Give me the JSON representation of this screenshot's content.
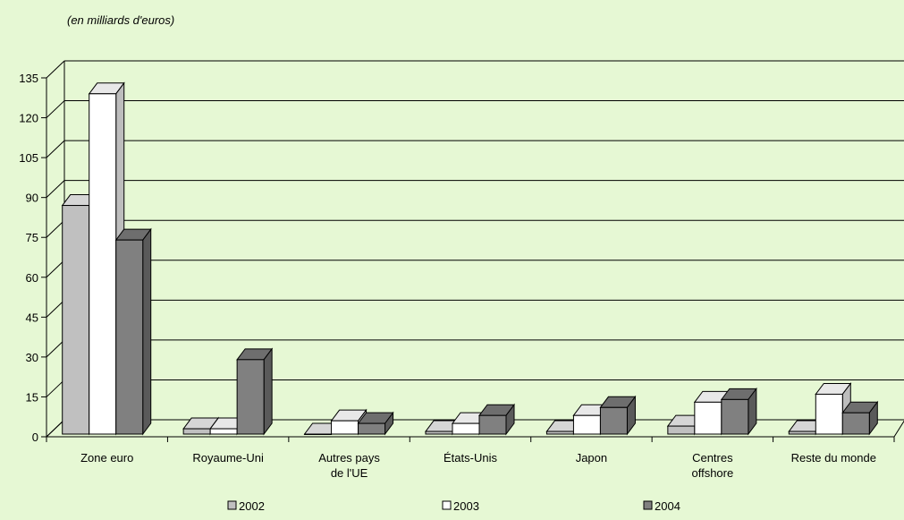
{
  "chart_data": {
    "type": "bar",
    "subtitle": "(en milliards d'euros)",
    "categories": [
      [
        "Zone euro"
      ],
      [
        "Royaume-Uni"
      ],
      [
        "Autres pays",
        "de l'UE"
      ],
      [
        "États-Unis"
      ],
      [
        "Japon"
      ],
      [
        "Centres",
        "offshore"
      ],
      [
        "Reste du monde"
      ]
    ],
    "series": [
      {
        "name": "2002",
        "color": "#c0c0c0",
        "top": "#d6d6d6",
        "side": "#8c8c8c",
        "values": [
          86,
          2,
          0,
          1,
          1,
          3,
          1
        ]
      },
      {
        "name": "2003",
        "color": "#ffffff",
        "top": "#e8e8e8",
        "side": "#bdbdbd",
        "values": [
          128,
          2,
          5,
          4,
          7,
          12,
          15
        ]
      },
      {
        "name": "2004",
        "color": "#808080",
        "top": "#6e6e6e",
        "side": "#5a5a5a",
        "values": [
          73,
          28,
          4,
          7,
          10,
          13,
          8
        ]
      }
    ],
    "yticks": [
      0,
      15,
      30,
      45,
      60,
      75,
      90,
      105,
      120,
      135
    ],
    "ylim": [
      0,
      135
    ],
    "grid": true,
    "legend": "bottom"
  }
}
